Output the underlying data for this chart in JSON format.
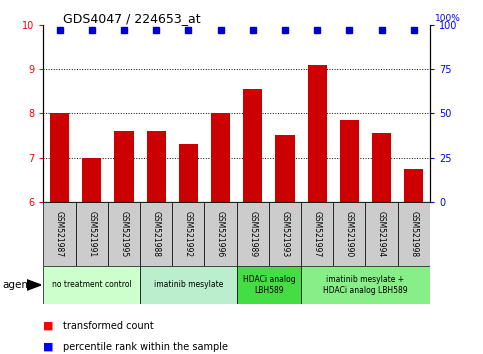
{
  "title": "GDS4047 / 224653_at",
  "samples": [
    "GSM521987",
    "GSM521991",
    "GSM521995",
    "GSM521988",
    "GSM521992",
    "GSM521996",
    "GSM521989",
    "GSM521993",
    "GSM521997",
    "GSM521990",
    "GSM521994",
    "GSM521998"
  ],
  "bar_values": [
    8.0,
    7.0,
    7.6,
    7.6,
    7.3,
    8.0,
    8.55,
    7.5,
    9.1,
    7.85,
    7.55,
    6.75
  ],
  "percentile_values": [
    97,
    97,
    97,
    97,
    97,
    97,
    97,
    97,
    97,
    97,
    97,
    97
  ],
  "bar_color": "#cc0000",
  "percentile_color": "#0000cc",
  "ylim_left": [
    6,
    10
  ],
  "ylim_right": [
    0,
    100
  ],
  "yticks_left": [
    6,
    7,
    8,
    9,
    10
  ],
  "yticks_right": [
    0,
    25,
    50,
    75,
    100
  ],
  "groups": [
    {
      "label": "no treatment control",
      "start": 0,
      "end": 3,
      "color": "#ccffcc"
    },
    {
      "label": "imatinib mesylate",
      "start": 3,
      "end": 6,
      "color": "#aaddaa"
    },
    {
      "label": "HDACi analog\nLBH589",
      "start": 6,
      "end": 8,
      "color": "#44dd44"
    },
    {
      "label": "imatinib mesylate +\nHDACi analog LBH589",
      "start": 8,
      "end": 12,
      "color": "#88ee88"
    }
  ],
  "legend_labels": [
    "transformed count",
    "percentile rank within the sample"
  ],
  "agent_label": "agent",
  "sample_bg_color": "#cccccc",
  "plot_bg": "#ffffff",
  "dotted_yticks": [
    7,
    8,
    9
  ]
}
